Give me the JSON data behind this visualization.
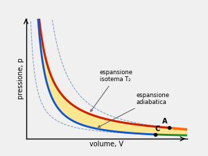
{
  "xlabel": "volume, V",
  "ylabel": "pressione, p",
  "background_color": "#f0f0f0",
  "grid_color": "#d0d0d0",
  "dashed_color": "#7799bb",
  "T2_color": "#cc2200",
  "T1_color": "#228B22",
  "adiab_DA_color": "#ff6600",
  "adiab_BC_color": "#1155cc",
  "fill_yellow_color": "#ffe680",
  "fill_orange_color": "#ff9933",
  "T2_val": 9.0,
  "T1_val": 3.2,
  "K_adiab1": 22.0,
  "K_adiab2": 7.5,
  "gamma": 1.4,
  "xlim": [
    0,
    10.5
  ],
  "ylim": [
    0,
    10.5
  ],
  "label_fontsize": 6.0,
  "axis_label_fontsize": 7.0
}
